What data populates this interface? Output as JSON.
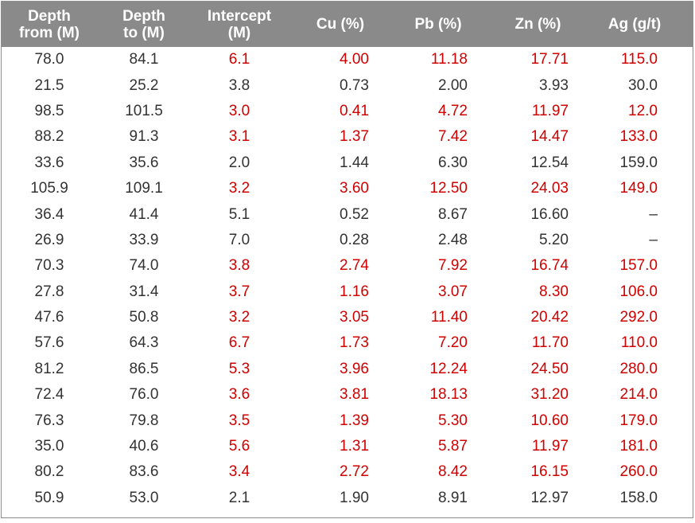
{
  "table": {
    "headers": [
      "Depth\nfrom (M)",
      "Depth\nto (M)",
      "Intercept\n(M)",
      "Cu (%)",
      "Pb (%)",
      "Zn (%)",
      "Ag (g/t)"
    ],
    "rows": [
      {
        "cells": [
          "78.0",
          "84.1",
          "6.1",
          "4.00",
          "11.18",
          "17.71",
          "115.0"
        ],
        "highlight": true
      },
      {
        "cells": [
          "21.5",
          "25.2",
          "3.8",
          "0.73",
          "2.00",
          "3.93",
          "30.0"
        ],
        "highlight": false
      },
      {
        "cells": [
          "98.5",
          "101.5",
          "3.0",
          "0.41",
          "4.72",
          "11.97",
          "12.0"
        ],
        "highlight": true
      },
      {
        "cells": [
          "88.2",
          "91.3",
          "3.1",
          "1.37",
          "7.42",
          "14.47",
          "133.0"
        ],
        "highlight": true
      },
      {
        "cells": [
          "33.6",
          "35.6",
          "2.0",
          "1.44",
          "6.30",
          "12.54",
          "159.0"
        ],
        "highlight": false
      },
      {
        "cells": [
          "105.9",
          "109.1",
          "3.2",
          "3.60",
          "12.50",
          "24.03",
          "149.0"
        ],
        "highlight": true
      },
      {
        "cells": [
          "36.4",
          "41.4",
          "5.1",
          "0.52",
          "8.67",
          "16.60",
          "–"
        ],
        "highlight": false
      },
      {
        "cells": [
          "26.9",
          "33.9",
          "7.0",
          "0.28",
          "2.48",
          "5.20",
          "–"
        ],
        "highlight": false
      },
      {
        "cells": [
          "70.3",
          "74.0",
          "3.8",
          "2.74",
          "7.92",
          "16.74",
          "157.0"
        ],
        "highlight": true
      },
      {
        "cells": [
          "27.8",
          "31.4",
          "3.7",
          "1.16",
          "3.07",
          "8.30",
          "106.0"
        ],
        "highlight": true
      },
      {
        "cells": [
          "47.6",
          "50.8",
          "3.2",
          "3.05",
          "11.40",
          "20.42",
          "292.0"
        ],
        "highlight": true
      },
      {
        "cells": [
          "57.6",
          "64.3",
          "6.7",
          "1.73",
          "7.20",
          "11.70",
          "110.0"
        ],
        "highlight": true
      },
      {
        "cells": [
          "81.2",
          "86.5",
          "5.3",
          "3.96",
          "12.24",
          "24.50",
          "280.0"
        ],
        "highlight": true
      },
      {
        "cells": [
          "72.4",
          "76.0",
          "3.6",
          "3.81",
          "18.13",
          "31.20",
          "214.0"
        ],
        "highlight": true
      },
      {
        "cells": [
          "76.3",
          "79.8",
          "3.5",
          "1.39",
          "5.30",
          "10.60",
          "179.0"
        ],
        "highlight": true
      },
      {
        "cells": [
          "35.0",
          "40.6",
          "5.6",
          "1.31",
          "5.87",
          "11.97",
          "181.0"
        ],
        "highlight": true
      },
      {
        "cells": [
          "80.2",
          "83.6",
          "3.4",
          "2.72",
          "8.42",
          "16.15",
          "260.0"
        ],
        "highlight": true
      },
      {
        "cells": [
          "50.9",
          "53.0",
          "2.1",
          "1.90",
          "8.91",
          "12.97",
          "158.0"
        ],
        "highlight": false
      }
    ]
  },
  "colors": {
    "header_bg": "#8a8a8a",
    "header_text": "#ffffff",
    "normal_text": "#333333",
    "highlight_text": "#d10000"
  }
}
